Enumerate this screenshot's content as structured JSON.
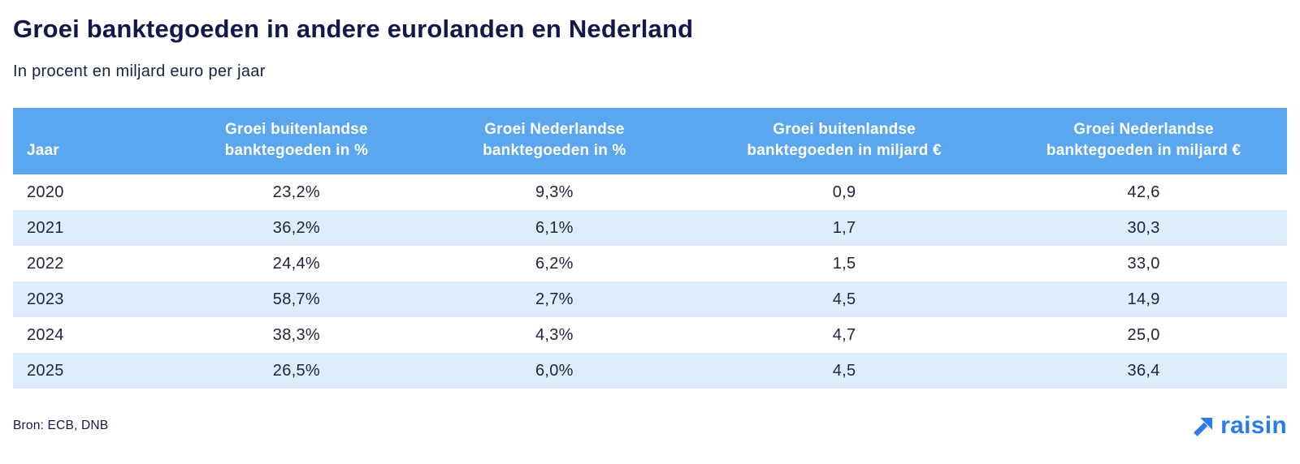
{
  "page": {
    "title": "Groei banktegoeden in andere eurolanden en Nederland",
    "subtitle": "In procent en miljard euro per jaar",
    "source": "Bron: ECB, DNB",
    "brand": "raisin"
  },
  "colors": {
    "header_bg": "#5AA7F0",
    "row_alt_bg": "#DEEDFB",
    "title_text": "#12194A",
    "cell_text": "#1C2440",
    "header_text": "#FFFFFF",
    "brand_blue": "#2B7CE9"
  },
  "chart_data": {
    "type": "table",
    "title": "Groei banktegoeden in andere eurolanden en Nederland",
    "subtitle": "In procent en miljard euro per jaar",
    "columns": [
      "Jaar",
      "Groei buitenlandse\nbanktegoeden in %",
      "Groei Nederlandse\nbanktegoeden in %",
      "Groei buitenlandse\nbanktegoeden in miljard €",
      "Groei Nederlandse\nbanktegoeden in miljard €"
    ],
    "rows": [
      [
        "2020",
        "23,2%",
        "9,3%",
        "0,9",
        "42,6"
      ],
      [
        "2021",
        "36,2%",
        "6,1%",
        "1,7",
        "30,3"
      ],
      [
        "2022",
        "24,4%",
        "6,2%",
        "1,5",
        "33,0"
      ],
      [
        "2023",
        "58,7%",
        "2,7%",
        "4,5",
        "14,9"
      ],
      [
        "2024",
        "38,3%",
        "4,3%",
        "4,7",
        "25,0"
      ],
      [
        "2025",
        "26,5%",
        "6,0%",
        "4,5",
        "36,4"
      ]
    ],
    "source": "Bron: ECB, DNB"
  }
}
